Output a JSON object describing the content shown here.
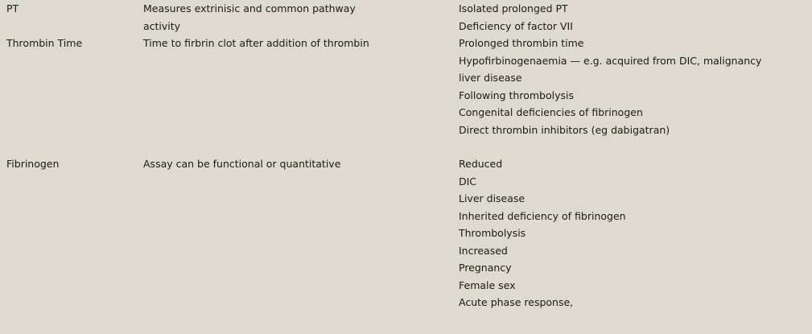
{
  "rows": [
    {
      "test": "PT",
      "description": [
        "Measures extrinisic and common pathway",
        "activity"
      ],
      "interpretation": [
        "Isolated prolonged PT",
        "Deficiency of factor VII"
      ]
    },
    {
      "test": "Thrombin Time",
      "description": [
        "Time to firbrin clot after addition of thrombin"
      ],
      "interpretation": [
        "Prolonged thrombin time",
        "Hypofirbinogenaemia — e.g. acquired from DIC, malignancy",
        "liver disease",
        "Following thrombolysis",
        "Congenital deficiencies of fibrinogen",
        "Direct thrombin inhibitors (eg dabigatran)"
      ]
    },
    {
      "test": "Fibrinogen",
      "description": [
        "Assay can be functional or quantitative"
      ],
      "interpretation": [
        "Reduced",
        "DIC",
        "Liver disease",
        "Inherited deficiency of fibrinogen",
        "Thrombolysis",
        "Increased",
        "Pregnancy",
        "Female sex",
        "Acute phase response,"
      ]
    }
  ]
}
